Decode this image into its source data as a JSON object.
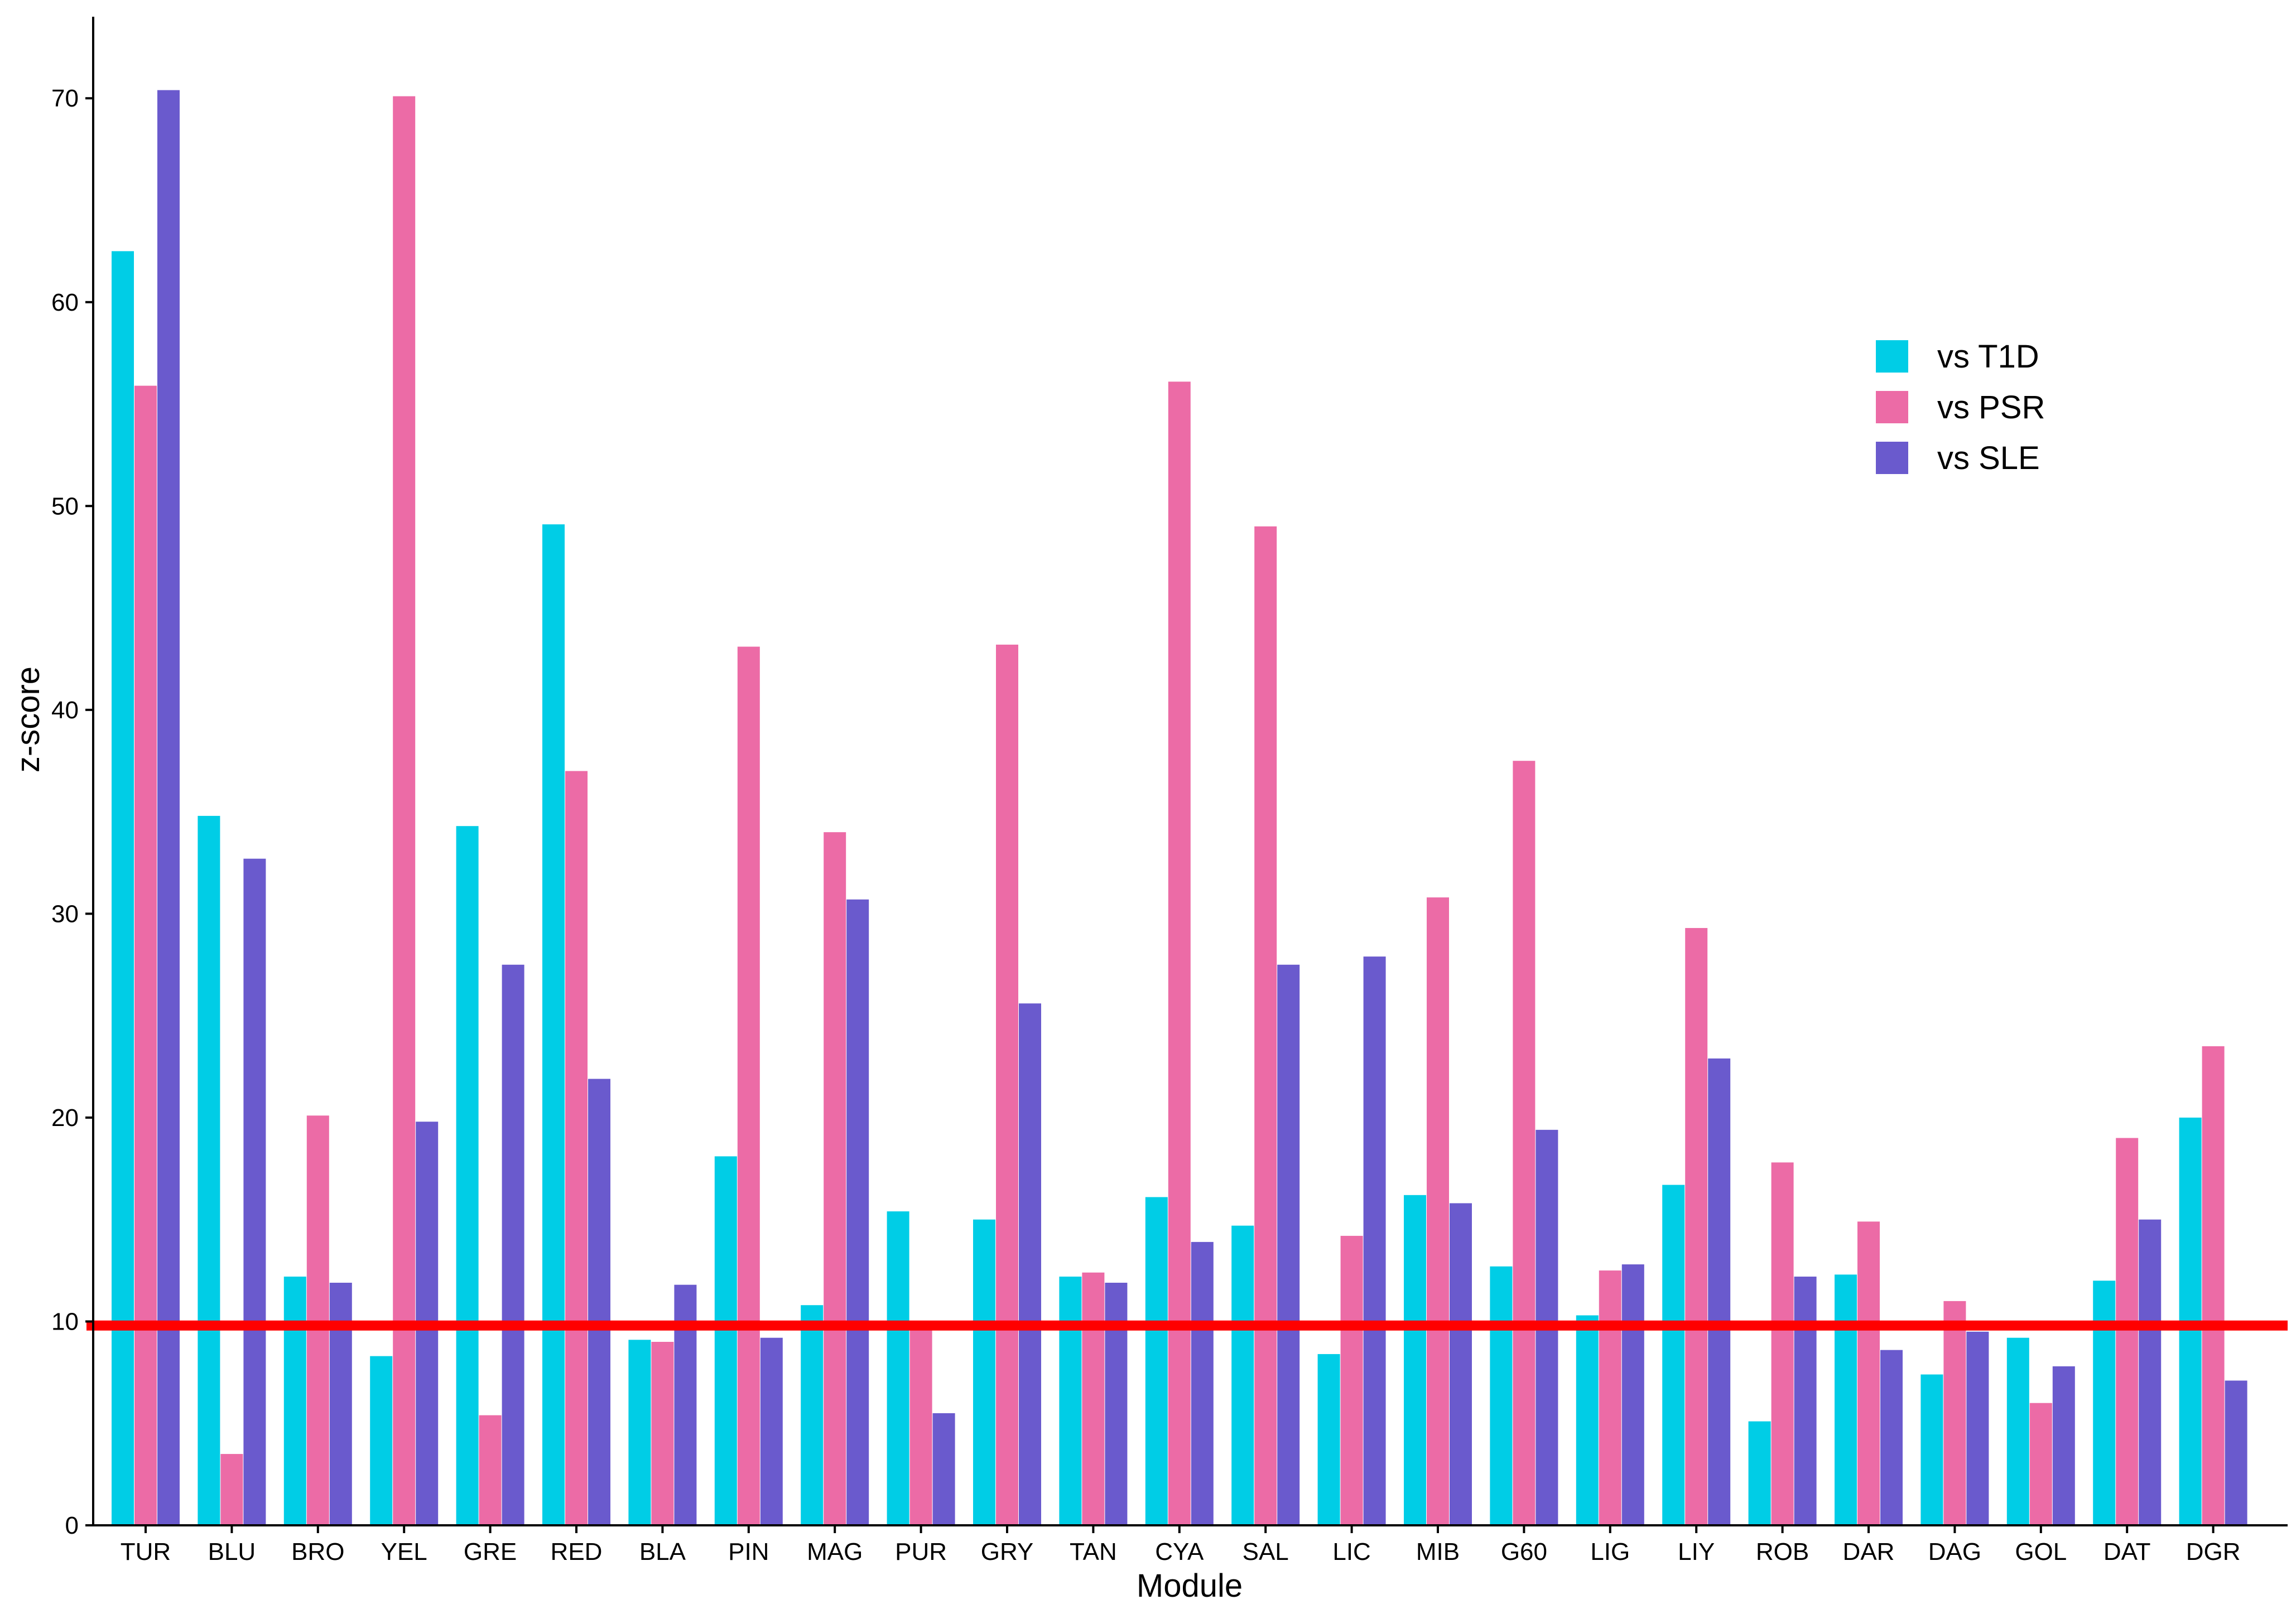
{
  "chart_data": {
    "type": "bar",
    "title": "",
    "xlabel": "Module",
    "ylabel": "z-score",
    "ylim": [
      0,
      74
    ],
    "yticks": [
      0,
      10,
      20,
      30,
      40,
      50,
      60,
      70
    ],
    "grid": false,
    "legend_position": "top-right",
    "categories": [
      "TUR",
      "BLU",
      "BRO",
      "YEL",
      "GRE",
      "RED",
      "BLA",
      "PIN",
      "MAG",
      "PUR",
      "GRY",
      "TAN",
      "CYA",
      "SAL",
      "LIC",
      "MIB",
      "G60",
      "LIG",
      "LIY",
      "ROB",
      "DAR",
      "DAG",
      "GOL",
      "DAT",
      "DGR"
    ],
    "series": [
      {
        "name": "vs T1D",
        "color": "#00CDE6",
        "values": [
          62.5,
          34.8,
          12.2,
          8.3,
          34.3,
          49.1,
          9.1,
          18.1,
          10.8,
          15.4,
          15.0,
          12.2,
          16.1,
          14.7,
          8.4,
          16.2,
          12.7,
          10.3,
          16.7,
          5.1,
          12.3,
          7.4,
          9.2,
          12.0,
          20.0
        ]
      },
      {
        "name": "vs PSR",
        "color": "#EC6BA6",
        "values": [
          55.9,
          3.5,
          20.1,
          70.1,
          5.4,
          37.0,
          9.0,
          43.1,
          34.0,
          9.7,
          43.2,
          12.4,
          56.1,
          49.0,
          14.2,
          30.8,
          37.5,
          12.5,
          29.3,
          17.8,
          14.9,
          11.0,
          6.0,
          19.0,
          23.5
        ]
      },
      {
        "name": "vs SLE",
        "color": "#6A5ACD",
        "values": [
          70.4,
          32.7,
          11.9,
          19.8,
          27.5,
          21.9,
          11.8,
          9.2,
          30.7,
          5.5,
          25.6,
          11.9,
          13.9,
          27.5,
          27.9,
          15.8,
          19.4,
          12.8,
          22.9,
          12.2,
          8.6,
          9.5,
          7.8,
          15.0,
          7.1
        ]
      }
    ],
    "reference_line": {
      "value": 9.8,
      "color": "#FF0000"
    }
  }
}
